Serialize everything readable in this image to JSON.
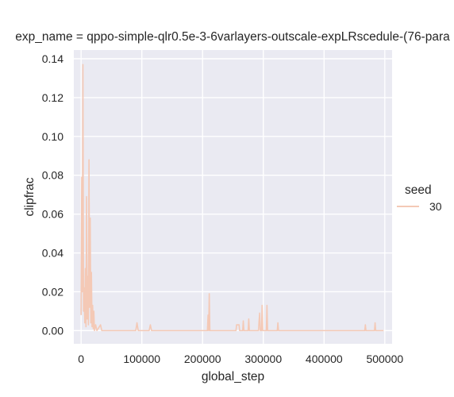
{
  "chart_data": {
    "type": "line",
    "title": "exp_name = qppo-simple-qlr0.5e-3-6varlayers-outscale-expLRscedule-(76-para",
    "xlabel": "global_step",
    "ylabel": "clipfrac",
    "xlim": [
      -12000,
      512000
    ],
    "ylim": [
      -0.0068,
      0.1445
    ],
    "x_ticks": [
      0,
      100000,
      200000,
      300000,
      400000,
      500000
    ],
    "x_tick_labels": [
      "0",
      "100000",
      "200000",
      "300000",
      "400000",
      "500000"
    ],
    "y_ticks": [
      0.0,
      0.02,
      0.04,
      0.06,
      0.08,
      0.1,
      0.12,
      0.14
    ],
    "y_tick_labels": [
      "0.00",
      "0.02",
      "0.04",
      "0.06",
      "0.08",
      "0.10",
      "0.12",
      "0.14"
    ],
    "grid": true,
    "legend": {
      "title": "seed",
      "position": "right"
    },
    "series": [
      {
        "name": "30",
        "color": "#f4c9b6",
        "points": [
          [
            0,
            0.008
          ],
          [
            1000,
            0.079
          ],
          [
            2000,
            0.02
          ],
          [
            3000,
            0.137
          ],
          [
            4000,
            0.01
          ],
          [
            5000,
            0.022
          ],
          [
            6000,
            0.004
          ],
          [
            7000,
            0.032
          ],
          [
            8000,
            0.002
          ],
          [
            9000,
            0.069
          ],
          [
            10000,
            0.006
          ],
          [
            11000,
            0.028
          ],
          [
            12000,
            0.003
          ],
          [
            13000,
            0.088
          ],
          [
            14000,
            0.012
          ],
          [
            15000,
            0.058
          ],
          [
            16000,
            0.004
          ],
          [
            17000,
            0.03
          ],
          [
            18000,
            0.002
          ],
          [
            19000,
            0.013
          ],
          [
            20000,
            0.001
          ],
          [
            21000,
            0.01
          ],
          [
            22000,
            0.0
          ],
          [
            24000,
            0.003
          ],
          [
            26000,
            0.0
          ],
          [
            32000,
            0.003
          ],
          [
            34000,
            0.0
          ],
          [
            90000,
            0.0
          ],
          [
            92000,
            0.004
          ],
          [
            94000,
            0.0
          ],
          [
            112000,
            0.0
          ],
          [
            114000,
            0.003
          ],
          [
            116000,
            0.0
          ],
          [
            208000,
            0.0
          ],
          [
            209000,
            0.008
          ],
          [
            210000,
            0.0
          ],
          [
            211000,
            0.019
          ],
          [
            212000,
            0.0
          ],
          [
            255000,
            0.0
          ],
          [
            256000,
            0.003
          ],
          [
            260000,
            0.003
          ],
          [
            261000,
            0.0
          ],
          [
            266000,
            0.0
          ],
          [
            267000,
            0.005
          ],
          [
            268000,
            0.0
          ],
          [
            275000,
            0.0
          ],
          [
            276000,
            0.006
          ],
          [
            277000,
            0.0
          ],
          [
            292000,
            0.0
          ],
          [
            293000,
            0.005
          ],
          [
            294000,
            0.009
          ],
          [
            295000,
            0.0
          ],
          [
            297000,
            0.0
          ],
          [
            298000,
            0.013
          ],
          [
            299000,
            0.0
          ],
          [
            305000,
            0.0
          ],
          [
            306000,
            0.013
          ],
          [
            307000,
            0.0
          ],
          [
            323000,
            0.0
          ],
          [
            324000,
            0.004
          ],
          [
            325000,
            0.0
          ],
          [
            467000,
            0.0
          ],
          [
            468000,
            0.003
          ],
          [
            469000,
            0.0
          ],
          [
            483000,
            0.0
          ],
          [
            484000,
            0.004
          ],
          [
            485000,
            0.0
          ],
          [
            498000,
            0.0
          ]
        ]
      }
    ]
  }
}
